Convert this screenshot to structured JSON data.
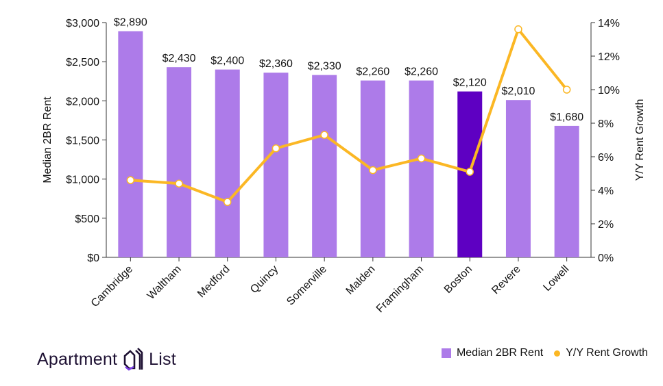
{
  "chart_data": {
    "type": "bar",
    "categories": [
      "Cambridge",
      "Waltham",
      "Medford",
      "Quincy",
      "Somerville",
      "Malden",
      "Framingham",
      "Boston",
      "Revere",
      "Lowell"
    ],
    "series": [
      {
        "name": "Median 2BR Rent",
        "type": "bar",
        "axis": "left",
        "values": [
          2890,
          2430,
          2400,
          2360,
          2330,
          2260,
          2260,
          2120,
          2010,
          1680
        ],
        "data_labels": [
          "$2,890",
          "$2,430",
          "$2,400",
          "$2,360",
          "$2,330",
          "$2,260",
          "$2,260",
          "$2,120",
          "$2,010",
          "$1,680"
        ],
        "color": "#ad7be9",
        "highlight_color": "#5e00c2",
        "highlight_category": "Boston"
      },
      {
        "name": "Y/Y Rent Growth",
        "type": "line",
        "axis": "right",
        "values": [
          4.6,
          4.4,
          3.3,
          6.5,
          7.3,
          5.2,
          5.9,
          5.1,
          13.6,
          10.0
        ],
        "color": "#fbb724"
      }
    ],
    "ylabel": "Median 2BR Rent",
    "y2label": "Y/Y Rent Growth",
    "ylim": [
      0,
      3000
    ],
    "y2lim": [
      0,
      14
    ],
    "yticks": [
      "$0",
      "$500",
      "$1,000",
      "$1,500",
      "$2,000",
      "$2,500",
      "$3,000"
    ],
    "y2ticks": [
      "0%",
      "2%",
      "4%",
      "6%",
      "8%",
      "10%",
      "12%",
      "14%"
    ],
    "grid": false,
    "legend": "bottom-right"
  },
  "legend": {
    "items": [
      "Median 2BR Rent",
      "Y/Y Rent Growth"
    ]
  },
  "brand": {
    "name_left": "Apartment",
    "name_right": "List"
  }
}
